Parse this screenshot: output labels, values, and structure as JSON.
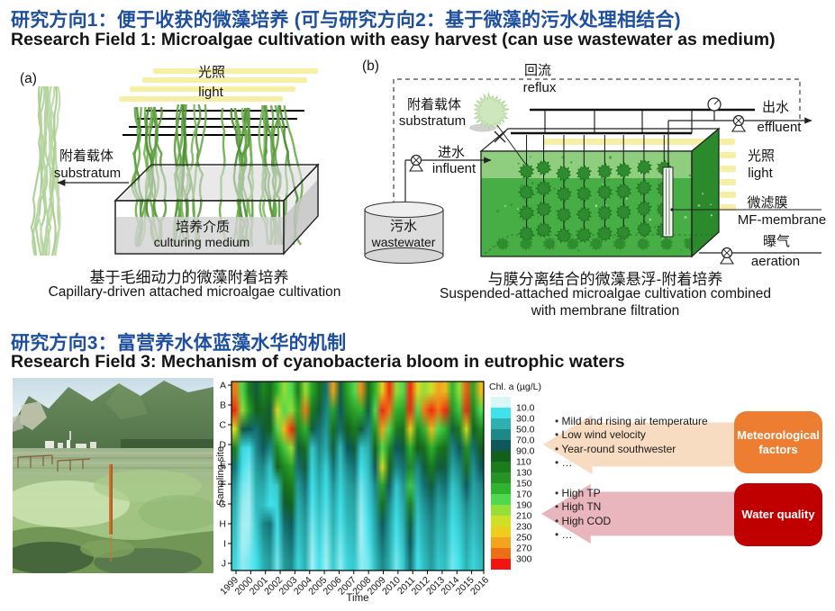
{
  "header1": {
    "title_zh": "研究方向1：便于收获的微藻培养 (可与研究方向2：基于微藻的污水处理相结合)",
    "title_en": "Research Field 1: Microalgae cultivation with easy harvest (can use wastewater as medium)",
    "accent_color": "#1e4f9f"
  },
  "panel_a": {
    "tag": "(a)",
    "light_zh": "光照",
    "light_en": "light",
    "substratum_zh": "附着载体",
    "substratum_en": "substratum",
    "medium_zh": "培养介质",
    "medium_en": "culturing medium",
    "caption_zh": "基于毛细动力的微藻附着培养",
    "caption_en": "Capillary-driven attached microalgae cultivation"
  },
  "panel_b": {
    "tag": "(b)",
    "reflux_zh": "回流",
    "reflux_en": "reflux",
    "substratum_zh": "附着载体",
    "substratum_en": "substratum",
    "influent_zh": "进水",
    "influent_en": "influent",
    "wastewater_zh": "污水",
    "wastewater_en": "wastewater",
    "effluent_zh": "出水",
    "effluent_en": "effluent",
    "light_zh": "光照",
    "light_en": "light",
    "membrane_zh": "微滤膜",
    "membrane_en": "MF-membrane",
    "aeration_zh": "曝气",
    "aeration_en": "aeration",
    "caption_zh": "与膜分离结合的微藻悬浮-附着培养",
    "caption_en1": "Suspended-attached microalgae cultivation combined",
    "caption_en2": "with membrane filtration"
  },
  "header3": {
    "title_zh": "研究方向3：富营养水体蓝藻水华的机制",
    "title_en": "Research Field 3: Mechanism of cyanobacteria bloom in eutrophic waters"
  },
  "chart_data": {
    "type": "heatmap",
    "legend_title": "Chl. a (µg/L)",
    "xlabel": "Time",
    "ylabel": "Sampling site",
    "sites": [
      "A",
      "B",
      "C",
      "D",
      "E",
      "F",
      "G",
      "H",
      "I",
      "J"
    ],
    "years": [
      1999,
      2000,
      2001,
      2002,
      2003,
      2004,
      2005,
      2006,
      2007,
      2008,
      2009,
      2010,
      2011,
      2012,
      2013,
      2014,
      2015,
      2016
    ],
    "columns_per_year": 2,
    "legend_labels": [
      "10.0",
      "30.0",
      "50.0",
      "70.0",
      "90.0",
      "110",
      "130",
      "150",
      "170",
      "190",
      "210",
      "230",
      "250",
      "270",
      "300"
    ],
    "legend_bounds": [
      10,
      30,
      50,
      70,
      90,
      110,
      130,
      150,
      170,
      190,
      210,
      230,
      250,
      270,
      300
    ],
    "legend_colors": [
      "#d9f7f8",
      "#41e2ec",
      "#2cb0b0",
      "#1e8888",
      "#0e585c",
      "#135f1d",
      "#1b7c1b",
      "#259425",
      "#2eb42e",
      "#4fd94f",
      "#96df38",
      "#cfe026",
      "#eccf1e",
      "#f2a41d",
      "#ed6f15",
      "#f31310"
    ],
    "values": [
      [
        280,
        180,
        120,
        90,
        130,
        110,
        160,
        200,
        180,
        120,
        200,
        150,
        110,
        70,
        260,
        90,
        150,
        180,
        270,
        110,
        160,
        240,
        300,
        200,
        180,
        300,
        230,
        200,
        220,
        260,
        250,
        160,
        200,
        290,
        150,
        250
      ],
      [
        300,
        200,
        150,
        100,
        110,
        90,
        230,
        180,
        200,
        150,
        280,
        120,
        90,
        60,
        150,
        80,
        130,
        150,
        160,
        90,
        180,
        300,
        280,
        160,
        150,
        300,
        180,
        280,
        300,
        280,
        300,
        140,
        170,
        300,
        130,
        180
      ],
      [
        220,
        90,
        80,
        70,
        90,
        100,
        180,
        250,
        300,
        130,
        160,
        90,
        70,
        50,
        110,
        70,
        100,
        120,
        90,
        60,
        140,
        260,
        180,
        120,
        110,
        240,
        130,
        160,
        250,
        180,
        160,
        90,
        120,
        220,
        100,
        130
      ],
      [
        120,
        25,
        20,
        60,
        80,
        60,
        130,
        170,
        200,
        90,
        110,
        30,
        60,
        40,
        90,
        35,
        80,
        90,
        30,
        40,
        100,
        180,
        130,
        80,
        90,
        160,
        100,
        110,
        160,
        120,
        110,
        60,
        80,
        140,
        70,
        100
      ],
      [
        70,
        20,
        15,
        50,
        60,
        30,
        100,
        130,
        150,
        70,
        90,
        25,
        50,
        25,
        70,
        30,
        60,
        70,
        20,
        35,
        80,
        220,
        100,
        60,
        70,
        130,
        60,
        90,
        120,
        90,
        90,
        45,
        60,
        110,
        55,
        80
      ],
      [
        50,
        15,
        12,
        40,
        45,
        25,
        30,
        110,
        120,
        50,
        70,
        20,
        40,
        20,
        55,
        25,
        45,
        55,
        15,
        30,
        60,
        150,
        80,
        30,
        55,
        170,
        45,
        70,
        90,
        60,
        70,
        30,
        45,
        80,
        45,
        60
      ],
      [
        40,
        12,
        10,
        35,
        35,
        20,
        25,
        90,
        100,
        40,
        60,
        18,
        35,
        18,
        45,
        20,
        40,
        45,
        12,
        25,
        50,
        110,
        60,
        25,
        45,
        120,
        35,
        55,
        70,
        45,
        55,
        25,
        35,
        60,
        40,
        50
      ],
      [
        35,
        10,
        10,
        30,
        60,
        70,
        20,
        70,
        80,
        35,
        50,
        15,
        30,
        15,
        40,
        18,
        35,
        40,
        10,
        20,
        45,
        80,
        50,
        20,
        40,
        90,
        30,
        45,
        60,
        40,
        45,
        20,
        30,
        50,
        35,
        45
      ],
      [
        30,
        10,
        12,
        25,
        50,
        60,
        18,
        60,
        70,
        30,
        45,
        12,
        25,
        12,
        35,
        15,
        30,
        35,
        10,
        18,
        40,
        70,
        45,
        18,
        35,
        80,
        25,
        40,
        55,
        35,
        40,
        18,
        25,
        45,
        30,
        40
      ],
      [
        25,
        12,
        15,
        20,
        40,
        50,
        15,
        50,
        60,
        25,
        40,
        10,
        20,
        10,
        30,
        12,
        25,
        30,
        12,
        15,
        35,
        60,
        40,
        15,
        30,
        70,
        20,
        35,
        50,
        30,
        35,
        15,
        20,
        40,
        25,
        35
      ]
    ]
  },
  "factors": {
    "meteo": {
      "items": [
        "Mild and rising air temperature",
        "Low wind velocity",
        "Year-round southwester",
        "…"
      ],
      "box_label": "Meteorological factors",
      "box_color": "#ed7d31",
      "arrow_color": "#f8dcc2"
    },
    "water": {
      "items": [
        "High TP",
        "High TN",
        "High COD",
        "…"
      ],
      "box_label": "Water quality",
      "box_color": "#c00000",
      "arrow_color": "#e8b6bc"
    }
  }
}
